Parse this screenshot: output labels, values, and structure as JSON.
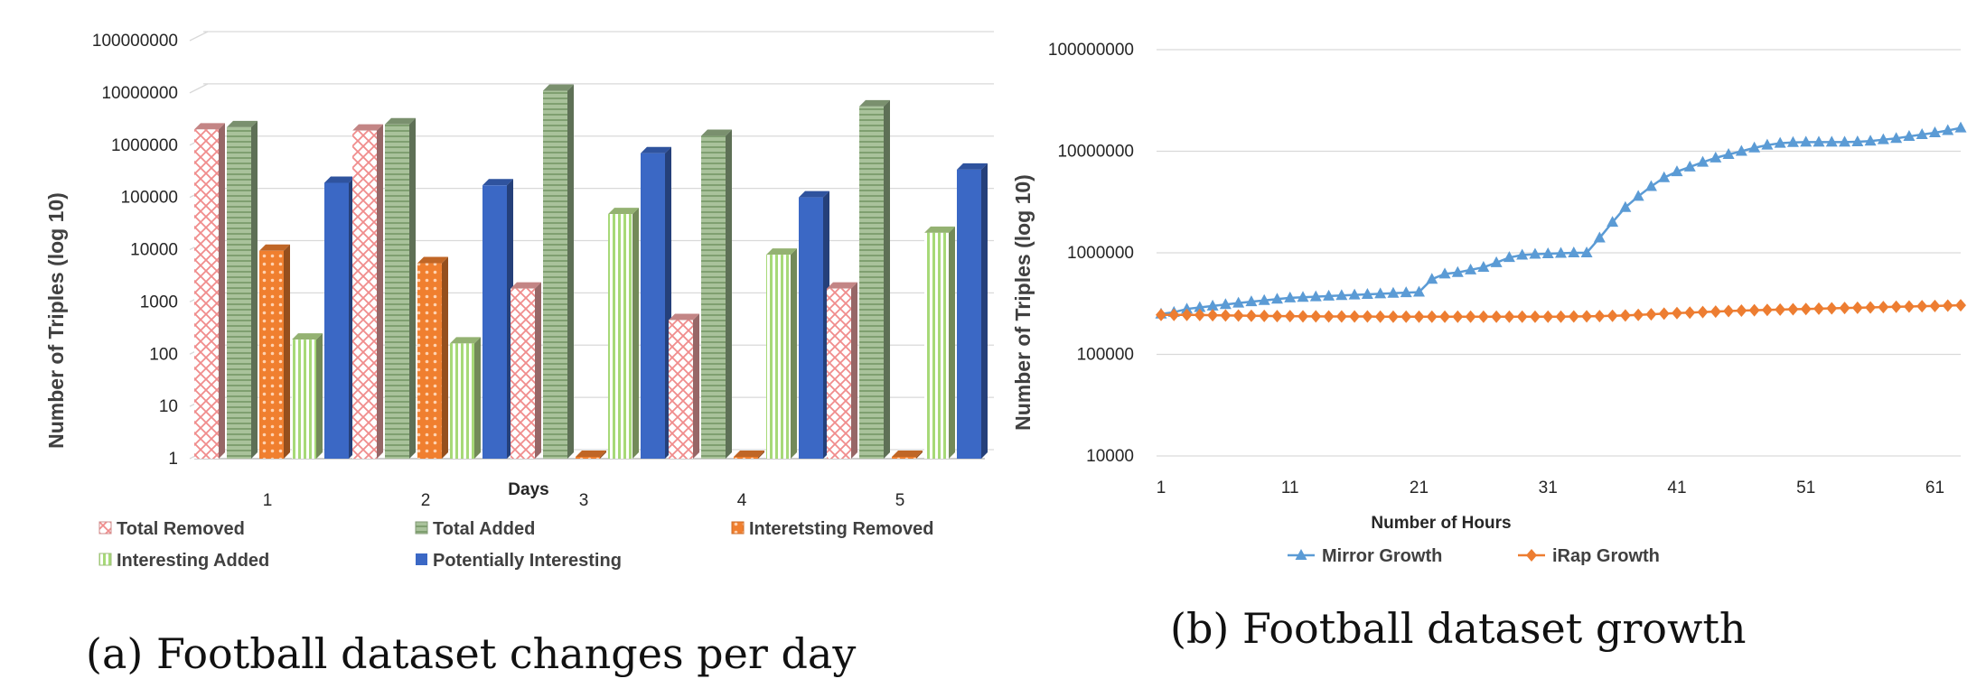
{
  "chart_data": [
    {
      "type": "bar",
      "caption": "(a) Football dataset changes per day",
      "xlabel": "Days",
      "ylabel": "Number of Triples (log 10)",
      "yscale": "log",
      "ylim": [
        1,
        100000000
      ],
      "y_ticks": [
        "1",
        "10",
        "100",
        "1000",
        "10000",
        "100000",
        "1000000",
        "10000000",
        "100000000"
      ],
      "categories": [
        "1",
        "2",
        "3",
        "4",
        "5"
      ],
      "grid": true,
      "legend_position": "bottom",
      "series": [
        {
          "name": "Total Removed",
          "color": "#f4a6a6",
          "pattern": "crosshatch",
          "values": [
            2000000,
            1900000,
            1800,
            450,
            1800
          ]
        },
        {
          "name": "Total Added",
          "color": "#98b48a",
          "pattern": "horizontal-lines",
          "values": [
            2200000,
            2500000,
            11000000,
            1500000,
            5500000
          ]
        },
        {
          "name": "Interetsting Removed",
          "color": "#f07f2f",
          "pattern": "dots",
          "values": [
            9500,
            5500,
            1,
            1,
            1
          ]
        },
        {
          "name": "Interesting Added",
          "color": "#b9df8f",
          "pattern": "vertical-lines",
          "values": [
            190,
            160,
            48000,
            8000,
            21000
          ]
        },
        {
          "name": "Potentially Interesting",
          "color": "#3b68c5",
          "pattern": "solid",
          "values": [
            190000,
            170000,
            700000,
            100000,
            340000
          ]
        }
      ]
    },
    {
      "type": "line",
      "caption": "(b) Football dataset growth",
      "xlabel": "Number of Hours",
      "ylabel": "Number of Triples (log 10)",
      "yscale": "log",
      "ylim": [
        10000,
        100000000
      ],
      "xlim": [
        1,
        63
      ],
      "y_ticks": [
        "10000",
        "100000",
        "1000000",
        "10000000",
        "100000000"
      ],
      "x_ticks": [
        "1",
        "11",
        "21",
        "31",
        "41",
        "51",
        "61"
      ],
      "grid": true,
      "legend_position": "bottom",
      "x": [
        1,
        2,
        3,
        4,
        5,
        6,
        7,
        8,
        9,
        10,
        11,
        12,
        13,
        14,
        15,
        16,
        17,
        18,
        19,
        20,
        21,
        22,
        23,
        24,
        25,
        26,
        27,
        28,
        29,
        30,
        31,
        32,
        33,
        34,
        35,
        36,
        37,
        38,
        39,
        40,
        41,
        42,
        43,
        44,
        45,
        46,
        47,
        48,
        49,
        50,
        51,
        52,
        53,
        54,
        55,
        56,
        57,
        58,
        59,
        60,
        61,
        62,
        63
      ],
      "series": [
        {
          "name": "Mirror Growth",
          "color": "#5b9bd5",
          "marker": "triangle",
          "values": [
            250000,
            260000,
            280000,
            290000,
            300000,
            310000,
            320000,
            330000,
            340000,
            350000,
            360000,
            365000,
            370000,
            375000,
            380000,
            385000,
            390000,
            395000,
            400000,
            405000,
            410000,
            550000,
            620000,
            640000,
            680000,
            720000,
            800000,
            900000,
            950000,
            970000,
            980000,
            990000,
            1000000,
            1000000,
            1400000,
            2000000,
            2800000,
            3600000,
            4500000,
            5500000,
            6300000,
            7000000,
            7800000,
            8600000,
            9300000,
            10000000,
            10800000,
            11500000,
            12000000,
            12200000,
            12300000,
            12300000,
            12300000,
            12300000,
            12400000,
            12600000,
            13000000,
            13400000,
            14000000,
            14600000,
            15200000,
            16000000,
            17000000
          ]
        },
        {
          "name": "iRap Growth",
          "color": "#ed7d31",
          "marker": "diamond",
          "values": [
            245000,
            245000,
            245000,
            244000,
            243000,
            242000,
            241000,
            240000,
            239000,
            238000,
            238000,
            237000,
            237000,
            236000,
            236000,
            236000,
            236000,
            235000,
            235000,
            235000,
            235000,
            235000,
            235000,
            235000,
            235000,
            235000,
            235000,
            235000,
            235000,
            235000,
            235000,
            235000,
            236000,
            237000,
            238000,
            240000,
            242000,
            245000,
            248000,
            252000,
            255000,
            258000,
            261000,
            264000,
            267000,
            270000,
            272000,
            274000,
            276000,
            278000,
            280000,
            282000,
            284000,
            286000,
            288000,
            290000,
            292000,
            294000,
            296000,
            298000,
            300000,
            302000,
            304000
          ]
        }
      ]
    }
  ]
}
